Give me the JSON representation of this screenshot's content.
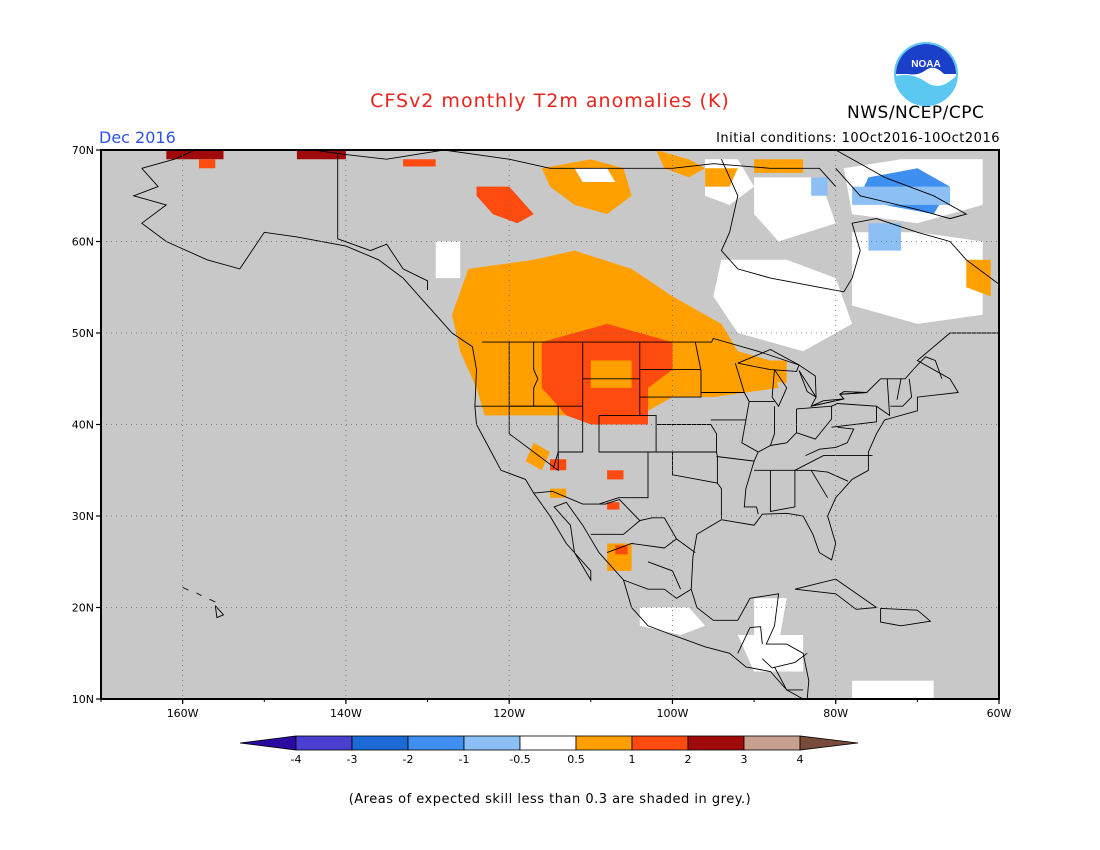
{
  "header": {
    "title": "CFSv2 monthly T2m anomalies (K)",
    "month": "Dec 2016",
    "initial_conditions": "Initial conditions: 10Oct2016-10Oct2016",
    "agency": "NWS/NCEP/CPC",
    "logo_text": "NOAA"
  },
  "map": {
    "lat_labels": [
      "70N",
      "60N",
      "50N",
      "40N",
      "30N",
      "20N",
      "10N"
    ],
    "lon_labels": [
      "160W",
      "140W",
      "120W",
      "100W",
      "80W",
      "60W"
    ],
    "lat_range": [
      10,
      70
    ],
    "lon_range": [
      -170,
      -60
    ],
    "background_color": "#c8c8c8",
    "grid": "dotted"
  },
  "colorbar": {
    "tick_labels": [
      "-4",
      "-3",
      "-2",
      "-1",
      "-0.5",
      "0.5",
      "1",
      "2",
      "3",
      "4"
    ],
    "colors": [
      "#2a0aa0",
      "#4a3fd0",
      "#1c6ad6",
      "#3f8ff0",
      "#8cc0f4",
      "#ffffff",
      "#ffa000",
      "#ff4a10",
      "#a00a0a",
      "#c8a090",
      "#7a4a3a"
    ]
  },
  "footer": {
    "skill_note": "(Areas of expected skill less than 0.3 are shaded in grey.)"
  }
}
